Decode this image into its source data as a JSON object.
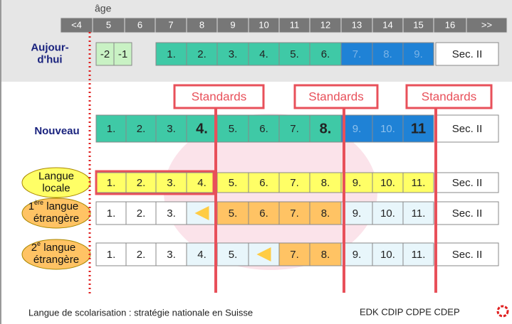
{
  "header": {
    "age_label": "âge",
    "ages": [
      "<4",
      "5",
      "6",
      "7",
      "8",
      "9",
      "10",
      "11",
      "12",
      "13",
      "14",
      "15",
      "16",
      ">>"
    ]
  },
  "standards": [
    "Standards",
    "Standards",
    "Standards"
  ],
  "rows": [
    {
      "label": [
        "Aujour-",
        "d'hui"
      ],
      "cells": [
        "-2",
        "-1",
        "1.",
        "2.",
        "3.",
        "4.",
        "5.",
        "6.",
        "7.",
        "8.",
        "9.",
        "Sec. II"
      ]
    },
    {
      "label": [
        "Nouveau"
      ],
      "cells": [
        "1.",
        "2.",
        "3.",
        "4.",
        "5.",
        "6.",
        "7.",
        "8.",
        "9.",
        "10.",
        "11",
        "Sec. II"
      ]
    },
    {
      "label": [
        "Langue",
        "locale"
      ],
      "cells": [
        "1.",
        "2.",
        "3.",
        "4.",
        "5.",
        "6.",
        "7.",
        "8.",
        "9.",
        "10.",
        "11.",
        "Sec. II"
      ]
    },
    {
      "label": [
        "1",
        "ère",
        " langue",
        "étrangère"
      ],
      "cells": [
        "1.",
        "2.",
        "3.",
        null,
        "5.",
        "6.",
        "7.",
        "8.",
        "9.",
        "10.",
        "11.",
        "Sec. II"
      ]
    },
    {
      "label": [
        "2",
        "e",
        " langue",
        "étrangère"
      ],
      "cells": [
        "1.",
        "2.",
        "3.",
        "4.",
        "5.",
        null,
        "7.",
        "8.",
        "9.",
        "10.",
        "11.",
        "Sec. II"
      ]
    }
  ],
  "footer": {
    "title": "Langue de scolarisation : stratégie nationale en Suisse",
    "orgs": "EDK CDIP CDPE CDEP"
  }
}
